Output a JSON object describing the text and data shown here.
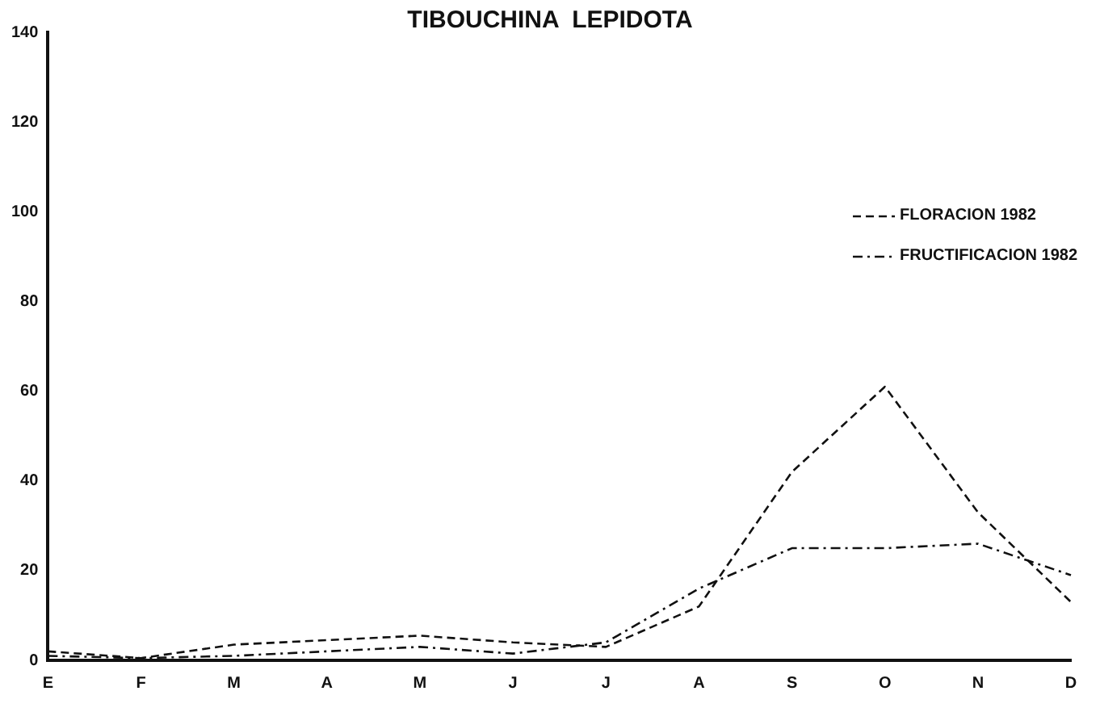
{
  "chart_data": {
    "type": "line",
    "title": "TIBOUCHINA  LEPIDOTA",
    "categories": [
      "E",
      "F",
      "M",
      "A",
      "M",
      "J",
      "J",
      "A",
      "S",
      "O",
      "N",
      "D"
    ],
    "series": [
      {
        "name": "FLORACION 1982",
        "color": "#111111",
        "line_style": "dashed",
        "values": [
          2,
          0.5,
          3.5,
          4.5,
          5.5,
          4,
          3,
          12,
          42,
          61,
          33,
          13
        ]
      },
      {
        "name": "FRUCTIFICACION 1982",
        "color": "#111111",
        "line_style": "dotted",
        "values": [
          1,
          0.5,
          1,
          2,
          3,
          1.5,
          4,
          16,
          25,
          25,
          26,
          19
        ]
      }
    ],
    "ylim": [
      0,
      140
    ],
    "yticks": [
      0,
      20,
      40,
      60,
      80,
      100,
      120,
      140
    ],
    "grid": false,
    "legend": "top right",
    "marker": "none"
  }
}
